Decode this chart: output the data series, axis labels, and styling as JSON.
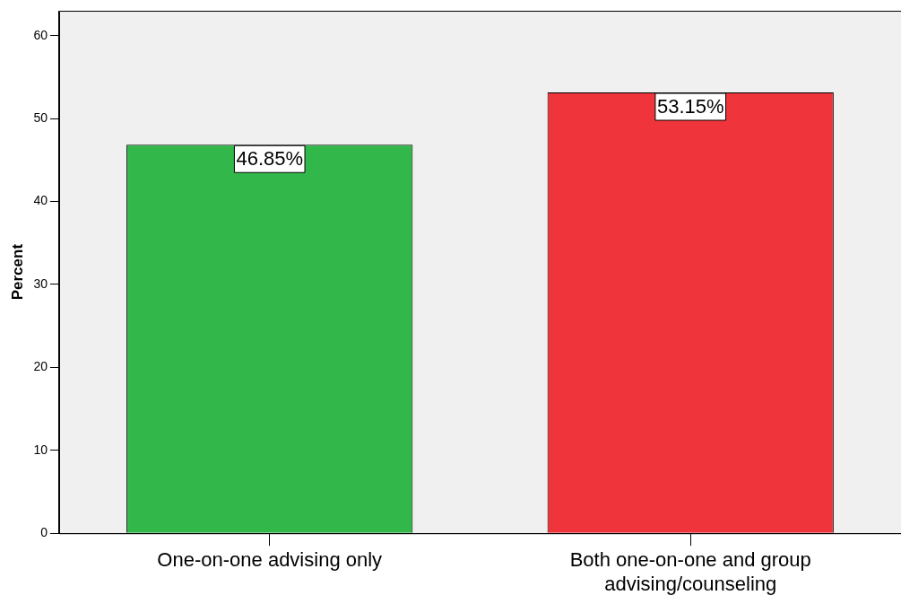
{
  "chart_data": {
    "type": "bar",
    "ylabel": "Percent",
    "categories": [
      "One-on-one advising only",
      "Both one-on-one and group advising/counseling"
    ],
    "values": [
      46.85,
      53.15
    ],
    "colors": [
      "#32b74a",
      "#f0343b"
    ],
    "value_labels": [
      "46.85%",
      "53.15%"
    ],
    "ylim": [
      0,
      63
    ],
    "yticks": [
      0,
      10,
      20,
      30,
      40,
      50,
      60
    ],
    "grid": false,
    "legend": false
  }
}
